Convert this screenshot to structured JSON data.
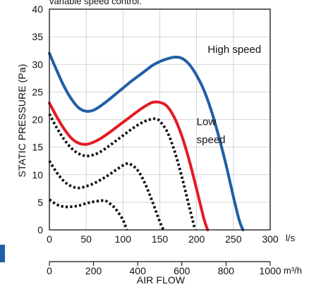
{
  "chart_data": {
    "type": "line",
    "subtitle": "variable speed control.",
    "xlabel": "AIR FLOW",
    "ylabel": "STATIC PRESSURE (Pa)",
    "x_unit": "l/s",
    "secondary_x_unit": "m³/h",
    "xlim": [
      0,
      300
    ],
    "ylim": [
      0,
      40
    ],
    "secondary_xlim": [
      0,
      1000
    ],
    "x_ticks": [
      0,
      50,
      100,
      150,
      200,
      250,
      300
    ],
    "y_ticks": [
      0,
      5,
      10,
      15,
      20,
      25,
      30,
      35,
      40
    ],
    "secondary_x_ticks": [
      0,
      200,
      400,
      600,
      800,
      1000
    ],
    "grid": true,
    "series": [
      {
        "name": "High speed",
        "color": "#1f5fa5",
        "style": "solid",
        "x": [
          0,
          10,
          20,
          30,
          40,
          50,
          60,
          70,
          80,
          90,
          100,
          110,
          120,
          130,
          140,
          150,
          160,
          170,
          180,
          190,
          200,
          210,
          220,
          230,
          240,
          250,
          258,
          263
        ],
        "y": [
          32.0,
          28.9,
          26.0,
          23.7,
          22.1,
          21.5,
          21.7,
          22.5,
          23.5,
          24.6,
          25.7,
          26.8,
          27.8,
          28.8,
          29.8,
          30.5,
          31.0,
          31.3,
          31.1,
          30.0,
          28.0,
          25.3,
          21.6,
          17.0,
          11.8,
          6.0,
          1.7,
          0
        ]
      },
      {
        "name": "Low speed",
        "color": "#e31b23",
        "style": "solid",
        "x": [
          0,
          10,
          20,
          30,
          40,
          50,
          60,
          70,
          80,
          90,
          100,
          110,
          120,
          130,
          140,
          150,
          160,
          170,
          180,
          190,
          200,
          210,
          215
        ],
        "y": [
          23.0,
          20.5,
          18.3,
          16.6,
          15.7,
          15.5,
          15.9,
          16.6,
          17.5,
          18.5,
          19.5,
          20.5,
          21.5,
          22.4,
          23.1,
          23.1,
          22.4,
          20.3,
          17.0,
          12.6,
          7.4,
          2.0,
          0
        ]
      },
      {
        "name": "",
        "color": "#111111",
        "style": "dotted",
        "x": [
          0,
          10,
          20,
          30,
          40,
          50,
          60,
          70,
          80,
          90,
          100,
          110,
          120,
          130,
          140,
          145,
          150,
          160,
          170,
          180,
          190,
          198
        ],
        "y": [
          21.0,
          18.5,
          16.4,
          14.8,
          13.8,
          13.4,
          13.6,
          14.2,
          15.1,
          16.1,
          17.1,
          18.1,
          19.0,
          19.7,
          20.1,
          20.1,
          19.7,
          17.8,
          14.3,
          9.6,
          4.2,
          0
        ]
      },
      {
        "name": "",
        "color": "#111111",
        "style": "dotted",
        "x": [
          0,
          10,
          20,
          30,
          40,
          50,
          60,
          70,
          80,
          90,
          100,
          105,
          110,
          120,
          130,
          140,
          150,
          155
        ],
        "y": [
          12.5,
          10.4,
          8.8,
          7.9,
          7.6,
          7.9,
          8.4,
          9.1,
          9.9,
          10.8,
          11.7,
          12.0,
          11.9,
          10.8,
          8.4,
          5.1,
          1.5,
          0
        ]
      },
      {
        "name": "",
        "color": "#111111",
        "style": "dotted",
        "x": [
          0,
          10,
          20,
          30,
          40,
          50,
          60,
          70,
          75,
          80,
          90,
          100,
          105
        ],
        "y": [
          5.5,
          4.6,
          4.2,
          4.2,
          4.4,
          4.8,
          5.1,
          5.3,
          5.3,
          5.0,
          3.8,
          1.8,
          0
        ]
      }
    ],
    "annotations": [
      {
        "text": "High speed",
        "x": 215,
        "y": 32.1
      },
      {
        "text": "Low",
        "x": 200,
        "y": 19.0
      },
      {
        "text": "speed",
        "x": 200,
        "y": 15.7
      }
    ]
  }
}
